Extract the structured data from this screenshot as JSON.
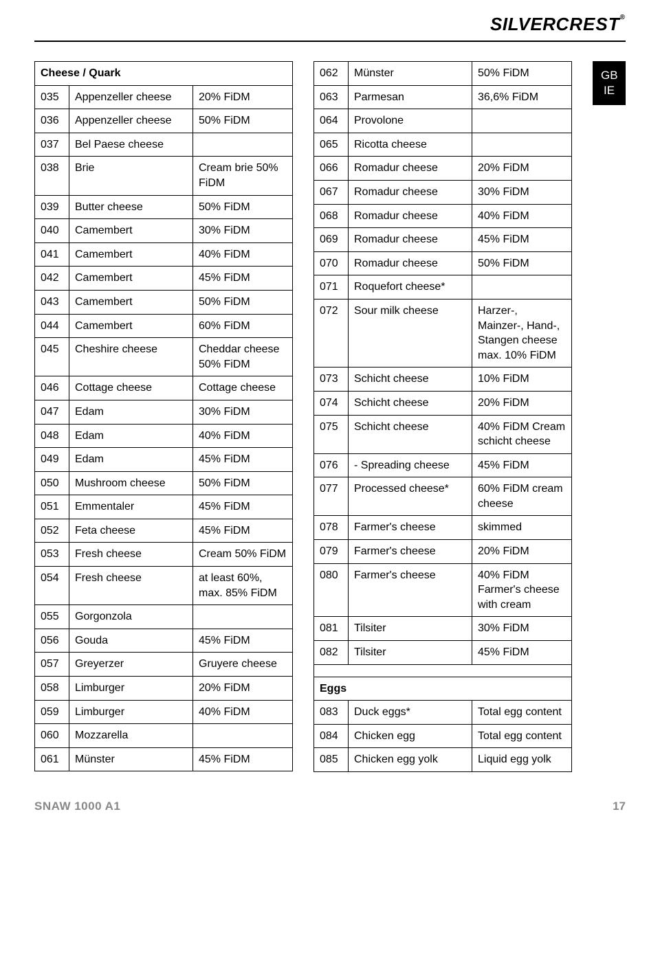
{
  "brand_1": "SILVER",
  "brand_2": "CREST",
  "locale_lines": [
    "GB",
    "IE"
  ],
  "table_left": {
    "header": "Cheese / Quark",
    "rows": [
      [
        "035",
        "Appenzeller cheese",
        "20% FiDM"
      ],
      [
        "036",
        "Appenzeller cheese",
        "50% FiDM"
      ],
      [
        "037",
        "Bel Paese cheese",
        ""
      ],
      [
        "038",
        "Brie",
        "Cream brie 50% FiDM"
      ],
      [
        "039",
        "Butter cheese",
        "50% FiDM"
      ],
      [
        "040",
        "Camembert",
        "30% FiDM"
      ],
      [
        "041",
        "Camembert",
        "40% FiDM"
      ],
      [
        "042",
        "Camembert",
        "45% FiDM"
      ],
      [
        "043",
        "Camembert",
        "50% FiDM"
      ],
      [
        "044",
        "Camembert",
        "60% FiDM"
      ],
      [
        "045",
        "Cheshire cheese",
        "Cheddar cheese 50% FiDM"
      ],
      [
        "046",
        "Cottage cheese",
        "Cottage cheese"
      ],
      [
        "047",
        "Edam",
        "30% FiDM"
      ],
      [
        "048",
        "Edam",
        "40% FiDM"
      ],
      [
        "049",
        "Edam",
        "45% FiDM"
      ],
      [
        "050",
        "Mushroom cheese",
        "50% FiDM"
      ],
      [
        "051",
        "Emmentaler",
        "45% FiDM"
      ],
      [
        "052",
        "Feta cheese",
        "45% FiDM"
      ],
      [
        "053",
        "Fresh cheese",
        "Cream 50% FiDM"
      ],
      [
        "054",
        "Fresh cheese",
        "at least 60%, max. 85% FiDM"
      ],
      [
        "055",
        "Gorgonzola",
        ""
      ],
      [
        "056",
        "Gouda",
        "45% FiDM"
      ],
      [
        "057",
        "Greyerzer",
        "Gruyere cheese"
      ],
      [
        "058",
        "Limburger",
        "20% FiDM"
      ],
      [
        "059",
        "Limburger",
        "40% FiDM"
      ],
      [
        "060",
        "Mozzarella",
        ""
      ],
      [
        "061",
        "Münster",
        "45% FiDM"
      ]
    ]
  },
  "table_right_a": {
    "rows": [
      [
        "062",
        "Münster",
        "50% FiDM"
      ],
      [
        "063",
        "Parmesan",
        "36,6% FiDM"
      ],
      [
        "064",
        "Provolone",
        ""
      ],
      [
        "065",
        "Ricotta cheese",
        ""
      ],
      [
        "066",
        "Romadur cheese",
        "20% FiDM"
      ],
      [
        "067",
        "Romadur cheese",
        "30% FiDM"
      ],
      [
        "068",
        "Romadur cheese",
        "40% FiDM"
      ],
      [
        "069",
        "Romadur cheese",
        "45% FiDM"
      ],
      [
        "070",
        "Romadur cheese",
        "50% FiDM"
      ],
      [
        "071",
        "Roquefort cheese*",
        ""
      ],
      [
        "072",
        "Sour milk cheese",
        "Harzer-, Mainzer-, Hand-, Stangen cheese max. 10% FiDM"
      ],
      [
        "073",
        "Schicht cheese",
        "10% FiDM"
      ],
      [
        "074",
        "Schicht cheese",
        "20% FiDM"
      ],
      [
        "075",
        "Schicht cheese",
        "40% FiDM Cream schicht cheese"
      ],
      [
        "076",
        "- Spreading cheese",
        "45% FiDM"
      ],
      [
        "077",
        "Processed cheese*",
        "60% FiDM cream cheese"
      ],
      [
        "078",
        "Farmer's cheese",
        "skimmed"
      ],
      [
        "079",
        "Farmer's cheese",
        "20% FiDM"
      ],
      [
        "080",
        "Farmer's cheese",
        "40% FiDM Farmer's cheese with cream"
      ],
      [
        "081",
        "Tilsiter",
        "30% FiDM"
      ],
      [
        "082",
        "Tilsiter",
        "45% FiDM"
      ]
    ]
  },
  "table_right_b": {
    "header": "Eggs",
    "rows": [
      [
        "083",
        "Duck eggs*",
        "Total egg content"
      ],
      [
        "084",
        "Chicken egg",
        "Total egg content"
      ],
      [
        "085",
        "Chicken egg yolk",
        "Liquid egg yolk"
      ]
    ]
  },
  "footer": {
    "model": "SNAW 1000 A1",
    "page": "17"
  }
}
